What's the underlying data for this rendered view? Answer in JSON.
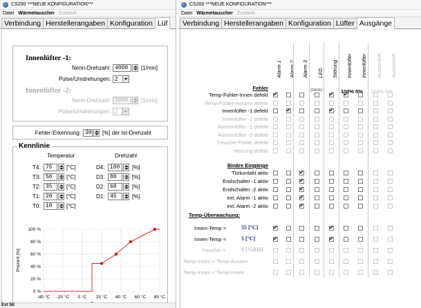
{
  "left": {
    "title": "CS200 ***NEUE KONFIGURATION***",
    "menu": [
      "Datei",
      "Wärmetauscher",
      "Zustand"
    ],
    "tabs": [
      "Verbindung",
      "Herstellerangaben",
      "Konfiguration",
      "Lüf"
    ],
    "innen1": {
      "title": "Innenlüfter -1:",
      "nenn_label": "Nenn-Drehzahl:",
      "nenn_value": "4000",
      "nenn_unit": "[1/min]",
      "puls_label": "Pulse/Umdrehungen:",
      "puls_value": "2"
    },
    "innen2": {
      "title": "Innenlüfter -2:",
      "nenn_label": "Nenn-Drehzahl:",
      "nenn_value": "2600",
      "nenn_unit": "[1/min]",
      "puls_label": "Pulse/Umdrehungen:",
      "puls_value": "2"
    },
    "fehler": {
      "label": "Fehler-Erkennung:",
      "value": "30",
      "unit": "[%] der Ist-Drehzahl"
    },
    "kennlinie": {
      "title": "Kennlinie",
      "temp_header": "Temperatur",
      "dreh_header": "Drehzahl",
      "rows": [
        {
          "t_label": "T4:",
          "t_value": "75",
          "t_unit": "[°C]",
          "d_label": "D4:",
          "d_value": "100",
          "d_unit": "[%]"
        },
        {
          "t_label": "T3:",
          "t_value": "50",
          "t_unit": "[°C]",
          "d_label": "D3:",
          "d_value": "80",
          "d_unit": "[%]"
        },
        {
          "t_label": "T2:",
          "t_value": "35",
          "t_unit": "[°C]",
          "d_label": "D2:",
          "d_value": "60",
          "d_unit": "[%]"
        },
        {
          "t_label": "T1:",
          "t_value": "20",
          "t_unit": "[°C]",
          "d_label": "D1:",
          "d_value": "45",
          "d_unit": "[%]"
        },
        {
          "t_label": "T0:",
          "t_value": "10",
          "t_unit": "[°C]"
        }
      ]
    },
    "status": "Ext SK"
  },
  "chart_data": {
    "type": "line",
    "xlabel": "Temperatur",
    "ylabel": "Prozent [%]",
    "xlim": [
      -40,
      80
    ],
    "ylim": [
      0,
      100
    ],
    "x_ticks": [
      "-40 °C",
      "-20 °C",
      "0 °C",
      "20 °C",
      "40 °C",
      "60 °C",
      "80 °C"
    ],
    "y_ticks": [
      "0 %",
      "20 %",
      "40 %",
      "60 %",
      "80 %",
      "100 %"
    ],
    "grid": true,
    "series": [
      {
        "x": [
          -40,
          10,
          10,
          20,
          35,
          50,
          75,
          80
        ],
        "y": [
          0,
          0,
          45,
          45,
          60,
          80,
          100,
          100
        ],
        "color": "#e02020"
      }
    ],
    "markers": {
      "x": [
        20,
        35,
        50,
        75
      ],
      "y": [
        45,
        60,
        80,
        100
      ]
    }
  },
  "right": {
    "title": "CS200 ***NEUE KONFIGURATION***",
    "menu": [
      "Datei",
      "Wärmetauscher",
      "Zustand"
    ],
    "tabs": [
      "Verbindung",
      "Herstellerangaben",
      "Konfiguration",
      "Lüfter",
      "Ausgänge"
    ],
    "columns": [
      {
        "label": "Alarm 1",
        "dis": false
      },
      {
        "label": "Alarm 2",
        "dis": false
      },
      {
        "label": "Alarm 3",
        "dis": false
      },
      {
        "label": "LED",
        "dis": false,
        "sub": "(blink)"
      },
      {
        "label": "Störung",
        "dis": false
      },
      {
        "label": "Innenlüfter",
        "dis": false,
        "pct": "100%"
      },
      {
        "label": "Innenlüfter",
        "dis": false,
        "pct": "0%"
      },
      {
        "label": "Aussenlüft.",
        "dis": true,
        "pct": "100%"
      },
      {
        "label": "Aussenlüft.",
        "dis": true,
        "pct": "0%"
      }
    ],
    "groups": {
      "fehler": "Fehler",
      "binaer": "Binäre Eingänge",
      "temp": "Temp-Überwachung:"
    },
    "fehler_rows": [
      {
        "label": "Temp-Fühler-Innen defekt",
        "dis": false,
        "checks": [
          1,
          0,
          0,
          0,
          1,
          1,
          0,
          0,
          0
        ]
      },
      {
        "label": "Temp-Fühler-Aussen defekt",
        "dis": true,
        "checks": [
          0,
          0,
          0,
          0,
          0,
          0,
          0,
          0,
          0
        ]
      },
      {
        "label": "Innenlüfter -1 defekt",
        "dis": false,
        "checks": [
          0,
          1,
          0,
          0,
          1,
          0,
          0,
          0,
          0
        ]
      },
      {
        "label": "Innenlüfter -2 defekt",
        "dis": true,
        "checks": [
          0,
          0,
          0,
          0,
          0,
          0,
          0,
          0,
          0
        ]
      },
      {
        "label": "Aussenlüfter -1 defekt",
        "dis": true,
        "checks": [
          0,
          0,
          0,
          0,
          0,
          0,
          0,
          0,
          0
        ]
      },
      {
        "label": "Aussenlüfter -2 defekt",
        "dis": true,
        "checks": [
          0,
          0,
          0,
          0,
          0,
          0,
          0,
          0,
          0
        ]
      },
      {
        "label": "Feuchte-Fühler defekt",
        "dis": true,
        "checks": [
          0,
          0,
          0,
          0,
          0,
          0,
          0,
          0,
          0
        ]
      },
      {
        "label": "Heizung defekt",
        "dis": true,
        "checks": [
          0,
          0,
          0,
          0,
          0,
          0,
          0,
          0,
          0
        ]
      }
    ],
    "binaer_rows": [
      {
        "label": "Türkontakt aktiv",
        "dis": false,
        "checks": [
          0,
          0,
          1,
          0,
          0,
          0,
          0,
          0,
          0
        ]
      },
      {
        "label": "Endschalter -1 aktiv",
        "dis": false,
        "checks": [
          0,
          0,
          1,
          0,
          0,
          0,
          0,
          0,
          0
        ]
      },
      {
        "label": "Endschalter -2 aktiv",
        "dis": false,
        "checks": [
          0,
          0,
          1,
          0,
          0,
          0,
          0,
          0,
          0
        ]
      },
      {
        "label": "ext. Alarm -1 aktiv",
        "dis": false,
        "checks": [
          0,
          0,
          1,
          0,
          0,
          0,
          0,
          0,
          0
        ]
      },
      {
        "label": "ext. Alarm -2 aktiv",
        "dis": false,
        "checks": [
          0,
          0,
          1,
          0,
          0,
          0,
          0,
          0,
          0
        ]
      }
    ],
    "temp_rows": [
      {
        "label": "Innen-Temp >",
        "value": "55 [°C]",
        "dis": false,
        "checks": [
          1,
          0,
          0,
          0,
          1,
          0,
          0,
          0,
          0
        ]
      },
      {
        "label": "Innen-Temp <",
        "value": "5 [°C]",
        "dis": false,
        "checks": [
          1,
          0,
          0,
          0,
          1,
          0,
          0,
          0,
          0
        ]
      },
      {
        "label": "Feuchte >",
        "value": "0 [%RH]",
        "dis": true,
        "checks": [
          0,
          0,
          0,
          0,
          0,
          0,
          0,
          0,
          0
        ]
      },
      {
        "label": "Temp-Innen > Temp-Aussen",
        "value": "",
        "dis": true,
        "checks": [
          0,
          0,
          0,
          0,
          0,
          0,
          0,
          0,
          0
        ]
      },
      {
        "label": "Temp-Innen < Temp-Innen",
        "value": "",
        "dis": true,
        "checks": [
          0,
          0,
          0,
          0,
          0,
          0,
          0,
          0,
          0
        ]
      }
    ]
  }
}
